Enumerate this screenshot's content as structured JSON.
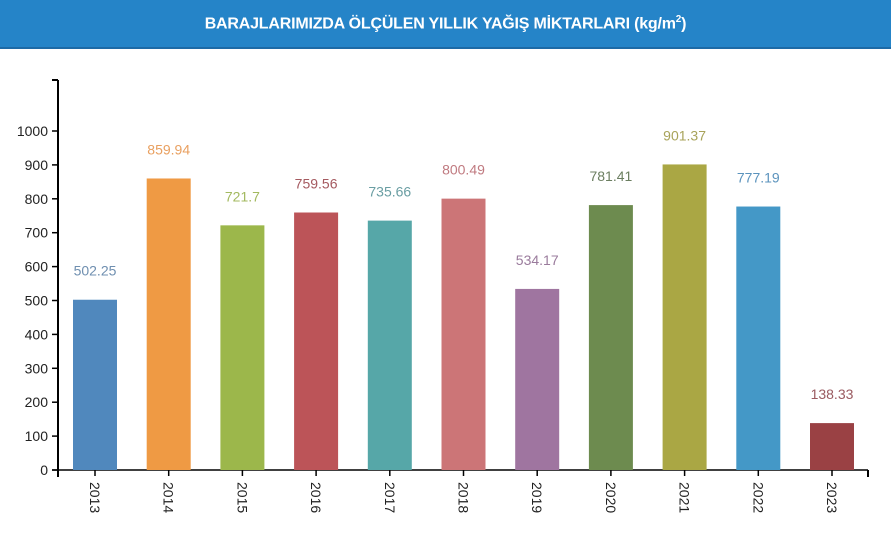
{
  "header": {
    "title": "BARAJLARIMIZDA ÖLÇÜLEN YILLIK YAĞIŞ MİKTARLARI (kg/m",
    "title_sup": "2",
    "title_end": ")",
    "bg_color": "#2584c8"
  },
  "chart_data": {
    "type": "bar",
    "title": "BARAJLARIMIZDA ÖLÇÜLEN YILLIK YAĞIŞ MİKTARLARI (kg/m²)",
    "xlabel": "",
    "ylabel": "",
    "categories": [
      "2013",
      "2014",
      "2015",
      "2016",
      "2017",
      "2018",
      "2019",
      "2020",
      "2021",
      "2022",
      "2023"
    ],
    "values": [
      502.25,
      859.94,
      721.7,
      759.56,
      735.66,
      800.49,
      534.17,
      781.41,
      901.37,
      777.19,
      138.33
    ],
    "value_labels": [
      "502.25",
      "859.94",
      "721.7",
      "759.56",
      "735.66",
      "800.49",
      "534.17",
      "781.41",
      "901.37",
      "777.19",
      "138.33"
    ],
    "colors": [
      "#5088bd",
      "#ef9a44",
      "#9cb74b",
      "#bc5458",
      "#56a7a8",
      "#cc7577",
      "#9f75a0",
      "#6d8b4f",
      "#aaa744",
      "#4498c7",
      "#9a4144"
    ],
    "label_colors": [
      "#6f8fb0",
      "#e9a060",
      "#a3b95f",
      "#a55a60",
      "#6a9ea3",
      "#c07a80",
      "#9a7b9c",
      "#6b7e60",
      "#a8a35a",
      "#5b93bd",
      "#9a5a60"
    ],
    "yticks": [
      0,
      100,
      200,
      300,
      400,
      500,
      600,
      700,
      800,
      900,
      1000
    ],
    "ylim": [
      0,
      1000
    ],
    "grid": false,
    "legend": "none"
  }
}
